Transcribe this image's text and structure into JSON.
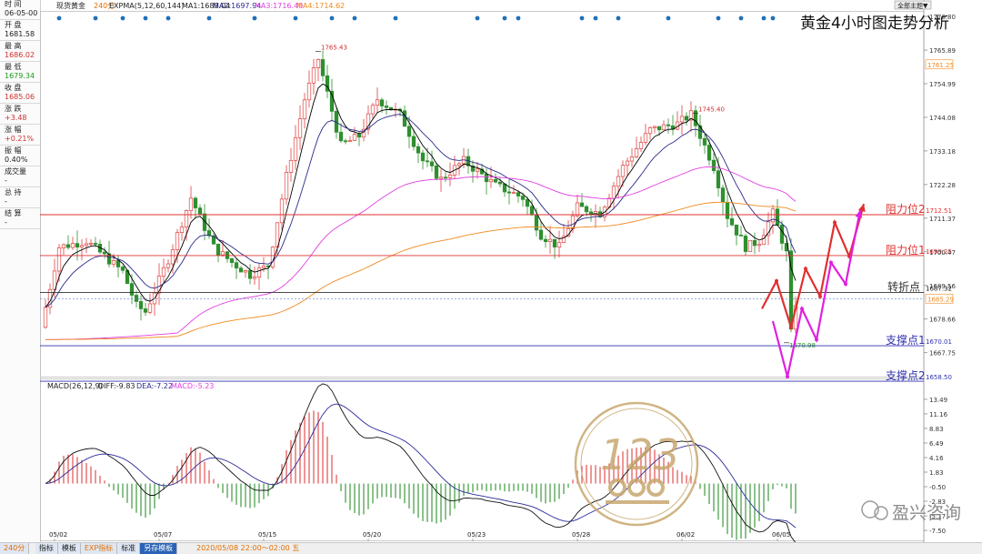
{
  "title": "黄金4小时图走势分析",
  "header": {
    "instrument": "现货黄金",
    "period": "240分",
    "indicator": "EXPMA(5,12,60,144)",
    "ma1": "MA1:1689.04",
    "ma2": "MA2:1697.94",
    "ma3": "MA3:1716.40",
    "ma4": "MA4:1714.62",
    "theme_button": "全部主题▼"
  },
  "sidebar": [
    {
      "label": "时 间",
      "value": "06-05-00",
      "color": "#222222"
    },
    {
      "label": "开 盘",
      "value": "1681.58",
      "color": "#222222"
    },
    {
      "label": "最 高",
      "value": "1686.02",
      "color": "#d03030"
    },
    {
      "label": "最 低",
      "value": "1679.34",
      "color": "#1a9a1a"
    },
    {
      "label": "收 盘",
      "value": "1685.06",
      "color": "#d03030"
    },
    {
      "label": "涨 跌",
      "value": "+3.48",
      "color": "#d03030"
    },
    {
      "label": "涨 幅",
      "value": "+0.21%",
      "color": "#d03030"
    },
    {
      "label": "振 幅",
      "value": "0.40%",
      "color": "#222222"
    },
    {
      "label": "成交量",
      "value": "-",
      "color": "#222222"
    },
    {
      "label": "总 持",
      "value": "-",
      "color": "#222222"
    },
    {
      "label": "结 算",
      "value": "-",
      "color": "#222222"
    }
  ],
  "macd_header": {
    "name": "MACD(26,12,9)",
    "diff": "DIFF:-9.83",
    "dea": "DEA:-7.22",
    "macd": "MACD:-5.23"
  },
  "footer": {
    "period_button": "240分",
    "tabs": [
      "指标",
      "模板",
      "EXP指标",
      "标准",
      "另存模板"
    ],
    "crosshair_time": "2020/05/08 22:00～02:00 五"
  },
  "watermark": "盈兴咨询",
  "logo_text": "123",
  "colors": {
    "up": "#e04040",
    "down": "#2f8f2f",
    "ma1": "#000000",
    "ma2": "#2a2a8a",
    "ma3": "#e040e0",
    "ma4": "#f08a20",
    "resistance": "#e03030",
    "support": "#3030b0",
    "pivot": "#333333",
    "arrow_red": "#e03030",
    "arrow_magenta": "#e020e0",
    "logo": "#c8a870"
  },
  "chart_data": {
    "type": "candlestick",
    "title": "黄金4小时图走势分析",
    "price_axis": {
      "ticks": [
        1776.8,
        1765.89,
        1754.99,
        1744.08,
        1733.18,
        1722.28,
        1711.37,
        1700.47,
        1689.56,
        1678.66,
        1667.75
      ],
      "left_ticks": [
        1700.47,
        1689.56,
        1678.66,
        1667.75
      ],
      "range": [
        1660.0,
        1778.0
      ]
    },
    "date_labels": [
      "05/02",
      "05/07",
      "05/15",
      "05/20",
      "05/23",
      "05/28",
      "06/02",
      "06/05"
    ],
    "date_label_bars": [
      2,
      25,
      48,
      71,
      94,
      117,
      140,
      161
    ],
    "annotations": [
      {
        "text": "1765.43",
        "price": 1765.43,
        "bar": 60
      },
      {
        "text": "1745.40",
        "price": 1745.4,
        "bar": 143
      },
      {
        "text": "1670.98",
        "price": 1670.98,
        "bar": 163
      }
    ],
    "levels": [
      {
        "name": "阻力位2",
        "value": "1712.51",
        "price": 1712.51,
        "kind": "resistance"
      },
      {
        "name": "阻力位1",
        "value": "1699.25",
        "price": 1699.25,
        "kind": "resistance"
      },
      {
        "name": "转折点",
        "value": "1687.32",
        "price": 1687.32,
        "kind": "pivot"
      },
      {
        "name": "支撑点1",
        "value": "1670.01",
        "price": 1670.01,
        "kind": "support"
      },
      {
        "name": "支撑点2",
        "value": "1658.50",
        "price": 1658.5,
        "kind": "support"
      }
    ],
    "right_tags": [
      {
        "value": "1761.25",
        "price": 1761.25,
        "color": "#f08a20"
      },
      {
        "value": "1685.29",
        "price": 1685.29,
        "color": "#f08a20"
      }
    ],
    "scenario_red": [
      1682,
      1691,
      1676,
      1695,
      1686,
      1710,
      1699,
      1716
    ],
    "scenario_magenta": [
      1678,
      1660,
      1682,
      1672,
      1697,
      1690,
      1714
    ],
    "macd_axis": {
      "ticks": [
        13.49,
        11.16,
        8.83,
        6.49,
        4.16,
        1.83,
        -0.5,
        -2.83,
        -5.17,
        -7.5
      ],
      "range": [
        -8.8,
        14.5
      ]
    }
  }
}
